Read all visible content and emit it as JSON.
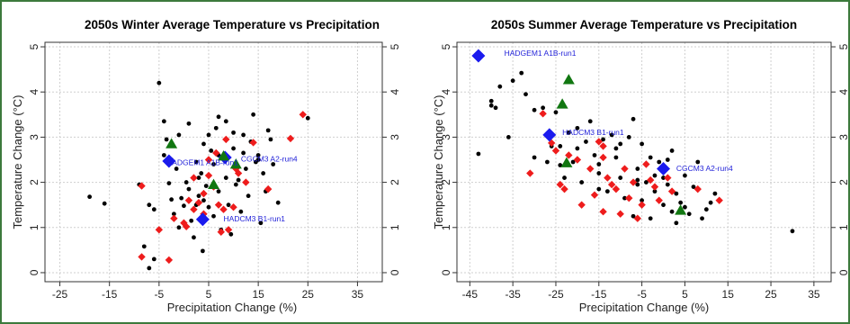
{
  "chart_data": [
    {
      "type": "scatter",
      "title": "2050s   Winter  Average Temperature vs Precipitation",
      "xlabel": "Precipitation Change (%)",
      "ylabel": "Temperature Change (°C)",
      "xlim": [
        -28,
        40
      ],
      "ylim": [
        -0.2,
        5.1
      ],
      "xticks": [
        "-25",
        "-15",
        "-5",
        "5",
        "15",
        "25",
        "35"
      ],
      "xtick_values": [
        -25,
        -15,
        -5,
        5,
        15,
        25,
        35
      ],
      "yticks": [
        "0",
        "1",
        "2",
        "3",
        "4",
        "5"
      ],
      "ytick_values": [
        0,
        1,
        2,
        3,
        4,
        5
      ],
      "grid": true,
      "annotations": [
        {
          "text": "HADGEM1 A1B-run1",
          "x": -3.5,
          "y": 2.38
        },
        {
          "text": "CGCM3 A2-run4",
          "x": 11.5,
          "y": 2.46
        },
        {
          "text": "HADCM3 B1-run1",
          "x": 8,
          "y": 1.13
        }
      ],
      "series": [
        {
          "marker": "circle",
          "color": "#000000",
          "points": [
            [
              -19,
              1.68
            ],
            [
              -16,
              1.53
            ],
            [
              -9,
              1.95
            ],
            [
              -8,
              0.58
            ],
            [
              -7,
              0.1
            ],
            [
              -7,
              1.5
            ],
            [
              -6,
              0.3
            ],
            [
              -5,
              4.2
            ],
            [
              -4,
              3.35
            ],
            [
              -3.5,
              2.95
            ],
            [
              -3,
              1.98
            ],
            [
              -2.5,
              1.62
            ],
            [
              -2,
              1.3
            ],
            [
              -1.5,
              2.3
            ],
            [
              -1,
              1.0
            ],
            [
              -0.5,
              1.65
            ],
            [
              0,
              1.48
            ],
            [
              0.5,
              2.0
            ],
            [
              1,
              1.85
            ],
            [
              1.5,
              1.15
            ],
            [
              2,
              0.78
            ],
            [
              2.5,
              1.5
            ],
            [
              3,
              2.1
            ],
            [
              3,
              1.7
            ],
            [
              3.5,
              2.2
            ],
            [
              4,
              1.6
            ],
            [
              4.5,
              1.92
            ],
            [
              5,
              3.05
            ],
            [
              5,
              1.45
            ],
            [
              5.5,
              2.7
            ],
            [
              6,
              2.4
            ],
            [
              6,
              1.25
            ],
            [
              6.5,
              3.2
            ],
            [
              7,
              1.8
            ],
            [
              7.5,
              0.95
            ],
            [
              8,
              2.55
            ],
            [
              8.5,
              3.35
            ],
            [
              8.5,
              2.1
            ],
            [
              9,
              1.5
            ],
            [
              9.5,
              0.85
            ],
            [
              10,
              2.75
            ],
            [
              10.5,
              1.95
            ],
            [
              11,
              2.05
            ],
            [
              11.5,
              1.35
            ],
            [
              12,
              3.05
            ],
            [
              12.5,
              2.3
            ],
            [
              13,
              1.7
            ],
            [
              13.5,
              2.9
            ],
            [
              14,
              3.5
            ],
            [
              14.5,
              2.45
            ],
            [
              15,
              2.6
            ],
            [
              15.5,
              1.1
            ],
            [
              16,
              2.2
            ],
            [
              16.5,
              1.8
            ],
            [
              17,
              3.15
            ],
            [
              17.5,
              2.95
            ],
            [
              18,
              2.4
            ],
            [
              19,
              1.55
            ],
            [
              -6,
              1.4
            ],
            [
              -4,
              2.6
            ],
            [
              -1,
              3.05
            ],
            [
              1,
              3.3
            ],
            [
              4,
              2.85
            ],
            [
              7,
              3.45
            ],
            [
              10,
              3.1
            ],
            [
              12,
              2.65
            ],
            [
              -2.5,
              2.5
            ],
            [
              2.5,
              2.45
            ],
            [
              7,
              2.6
            ],
            [
              15,
              2.5
            ],
            [
              25,
              3.42
            ],
            [
              3.8,
              0.48
            ]
          ]
        },
        {
          "marker": "diamond",
          "color": "#ee1c1c",
          "points": [
            [
              -8.5,
              1.92
            ],
            [
              -8.5,
              0.35
            ],
            [
              -5,
              0.95
            ],
            [
              -3,
              0.28
            ],
            [
              -2,
              1.2
            ],
            [
              0,
              1.1
            ],
            [
              0.5,
              1.02
            ],
            [
              1,
              1.6
            ],
            [
              2,
              1.4
            ],
            [
              3,
              1.55
            ],
            [
              4,
              1.3
            ],
            [
              5,
              2.5
            ],
            [
              5,
              2.15
            ],
            [
              6.5,
              2.65
            ],
            [
              7,
              1.5
            ],
            [
              7.5,
              0.9
            ],
            [
              8,
              1.4
            ],
            [
              8.5,
              2.95
            ],
            [
              9,
              0.95
            ],
            [
              10,
              1.45
            ],
            [
              10.5,
              2.3
            ],
            [
              11,
              2.2
            ],
            [
              12.5,
              2.0
            ],
            [
              14,
              2.88
            ],
            [
              17,
              1.85
            ],
            [
              21.5,
              2.97
            ],
            [
              24,
              3.5
            ],
            [
              4,
              1.75
            ],
            [
              6,
              1.9
            ],
            [
              2,
              2.1
            ]
          ]
        },
        {
          "marker": "diamond-large",
          "color": "#1a1aee",
          "points": [
            [
              -3,
              2.47
            ],
            [
              8.3,
              2.55
            ],
            [
              3.8,
              1.18
            ]
          ]
        },
        {
          "marker": "triangle",
          "color": "#117711",
          "points": [
            [
              -2.5,
              2.85
            ],
            [
              8,
              2.58
            ],
            [
              10.5,
              2.4
            ],
            [
              6,
              1.95
            ]
          ]
        }
      ]
    },
    {
      "type": "scatter",
      "title": "2050s   Summer  Average Temperature vs Precipitation",
      "xlabel": "Precipitation Change (%)",
      "ylabel": "Temperature Change (°C)",
      "xlim": [
        -48,
        39
      ],
      "ylim": [
        -0.2,
        5.1
      ],
      "xticks": [
        "-45",
        "-35",
        "-25",
        "-15",
        "-5",
        "5",
        "15",
        "25",
        "35"
      ],
      "xtick_values": [
        -45,
        -35,
        -25,
        -15,
        -5,
        5,
        15,
        25,
        35
      ],
      "yticks": [
        "0",
        "1",
        "2",
        "3",
        "4",
        "5"
      ],
      "ytick_values": [
        0,
        1,
        2,
        3,
        4,
        5
      ],
      "grid": true,
      "annotations": [
        {
          "text": "HADGEM1 A1B-run1",
          "x": -37,
          "y": 4.8
        },
        {
          "text": "HADCM3 B1-run1",
          "x": -23.5,
          "y": 3.05
        },
        {
          "text": "CGCM3 A2-run4",
          "x": 3,
          "y": 2.25
        }
      ],
      "series": [
        {
          "marker": "circle",
          "color": "#000000",
          "points": [
            [
              -43,
              2.63
            ],
            [
              -40,
              3.8
            ],
            [
              -40,
              3.7
            ],
            [
              -39,
              3.65
            ],
            [
              -38,
              4.12
            ],
            [
              -35,
              4.25
            ],
            [
              -33,
              4.42
            ],
            [
              -32,
              3.95
            ],
            [
              -30,
              3.6
            ],
            [
              -28,
              3.65
            ],
            [
              -27,
              2.45
            ],
            [
              -25,
              3.55
            ],
            [
              -24,
              2.8
            ],
            [
              -23,
              2.1
            ],
            [
              -22,
              3.1
            ],
            [
              -21,
              2.45
            ],
            [
              -20,
              2.75
            ],
            [
              -19,
              2.0
            ],
            [
              -18,
              2.9
            ],
            [
              -17,
              3.35
            ],
            [
              -16,
              2.6
            ],
            [
              -15,
              2.2
            ],
            [
              -14,
              2.95
            ],
            [
              -13,
              1.8
            ],
            [
              -12,
              3.05
            ],
            [
              -11,
              2.55
            ],
            [
              -10,
              2.1
            ],
            [
              -9,
              1.65
            ],
            [
              -8,
              3.0
            ],
            [
              -7,
              3.4
            ],
            [
              -7,
              1.25
            ],
            [
              -6,
              2.3
            ],
            [
              -5,
              2.85
            ],
            [
              -5,
              1.6
            ],
            [
              -4,
              2.0
            ],
            [
              -3,
              2.55
            ],
            [
              -3,
              1.2
            ],
            [
              -2,
              1.8
            ],
            [
              -1,
              2.45
            ],
            [
              0,
              1.5
            ],
            [
              0,
              2.1
            ],
            [
              1,
              1.95
            ],
            [
              2,
              2.7
            ],
            [
              2,
              1.35
            ],
            [
              3,
              1.75
            ],
            [
              4,
              1.55
            ],
            [
              5,
              2.15
            ],
            [
              6,
              1.3
            ],
            [
              7,
              1.9
            ],
            [
              8,
              2.45
            ],
            [
              9,
              1.2
            ],
            [
              10,
              1.4
            ],
            [
              11,
              1.55
            ],
            [
              12,
              1.75
            ],
            [
              -36,
              3.0
            ],
            [
              -30,
              2.55
            ],
            [
              -26,
              2.8
            ],
            [
              -20,
              3.2
            ],
            [
              -15,
              2.4
            ],
            [
              -11,
              2.75
            ],
            [
              -6,
              1.95
            ],
            [
              -2,
              2.15
            ],
            [
              1,
              2.5
            ],
            [
              3,
              1.1
            ],
            [
              5,
              1.45
            ],
            [
              30,
              0.92
            ],
            [
              -24,
              2.38
            ],
            [
              -15,
              1.85
            ],
            [
              -6,
              2.05
            ],
            [
              -10,
              2.85
            ]
          ]
        },
        {
          "marker": "diamond",
          "color": "#ee1c1c",
          "points": [
            [
              -31,
              2.2
            ],
            [
              -28,
              3.52
            ],
            [
              -26,
              2.87
            ],
            [
              -25,
              2.7
            ],
            [
              -24,
              1.95
            ],
            [
              -23,
              1.85
            ],
            [
              -22,
              2.6
            ],
            [
              -20,
              2.5
            ],
            [
              -19,
              1.5
            ],
            [
              -17,
              2.3
            ],
            [
              -16,
              1.72
            ],
            [
              -15,
              2.9
            ],
            [
              -14,
              2.55
            ],
            [
              -14,
              1.35
            ],
            [
              -13,
              2.1
            ],
            [
              -12,
              1.95
            ],
            [
              -11,
              1.85
            ],
            [
              -10,
              1.3
            ],
            [
              -9,
              2.3
            ],
            [
              -8,
              1.65
            ],
            [
              -7,
              2.0
            ],
            [
              -6,
              1.2
            ],
            [
              -5,
              1.5
            ],
            [
              -4,
              2.4
            ],
            [
              -3,
              2.05
            ],
            [
              -2,
              1.9
            ],
            [
              0,
              2.3
            ],
            [
              -1,
              1.6
            ],
            [
              1,
              2.1
            ],
            [
              2,
              1.8
            ],
            [
              8,
              1.85
            ],
            [
              13,
              1.6
            ],
            [
              -14,
              2.8
            ]
          ]
        },
        {
          "marker": "diamond-large",
          "color": "#1a1aee",
          "points": [
            [
              -43,
              4.8
            ],
            [
              -26.5,
              3.05
            ],
            [
              0,
              2.3
            ]
          ]
        },
        {
          "marker": "triangle",
          "color": "#117711",
          "points": [
            [
              -22,
              4.27
            ],
            [
              -23.5,
              3.73
            ],
            [
              -22.5,
              2.43
            ],
            [
              4,
              1.38
            ]
          ]
        }
      ]
    }
  ]
}
